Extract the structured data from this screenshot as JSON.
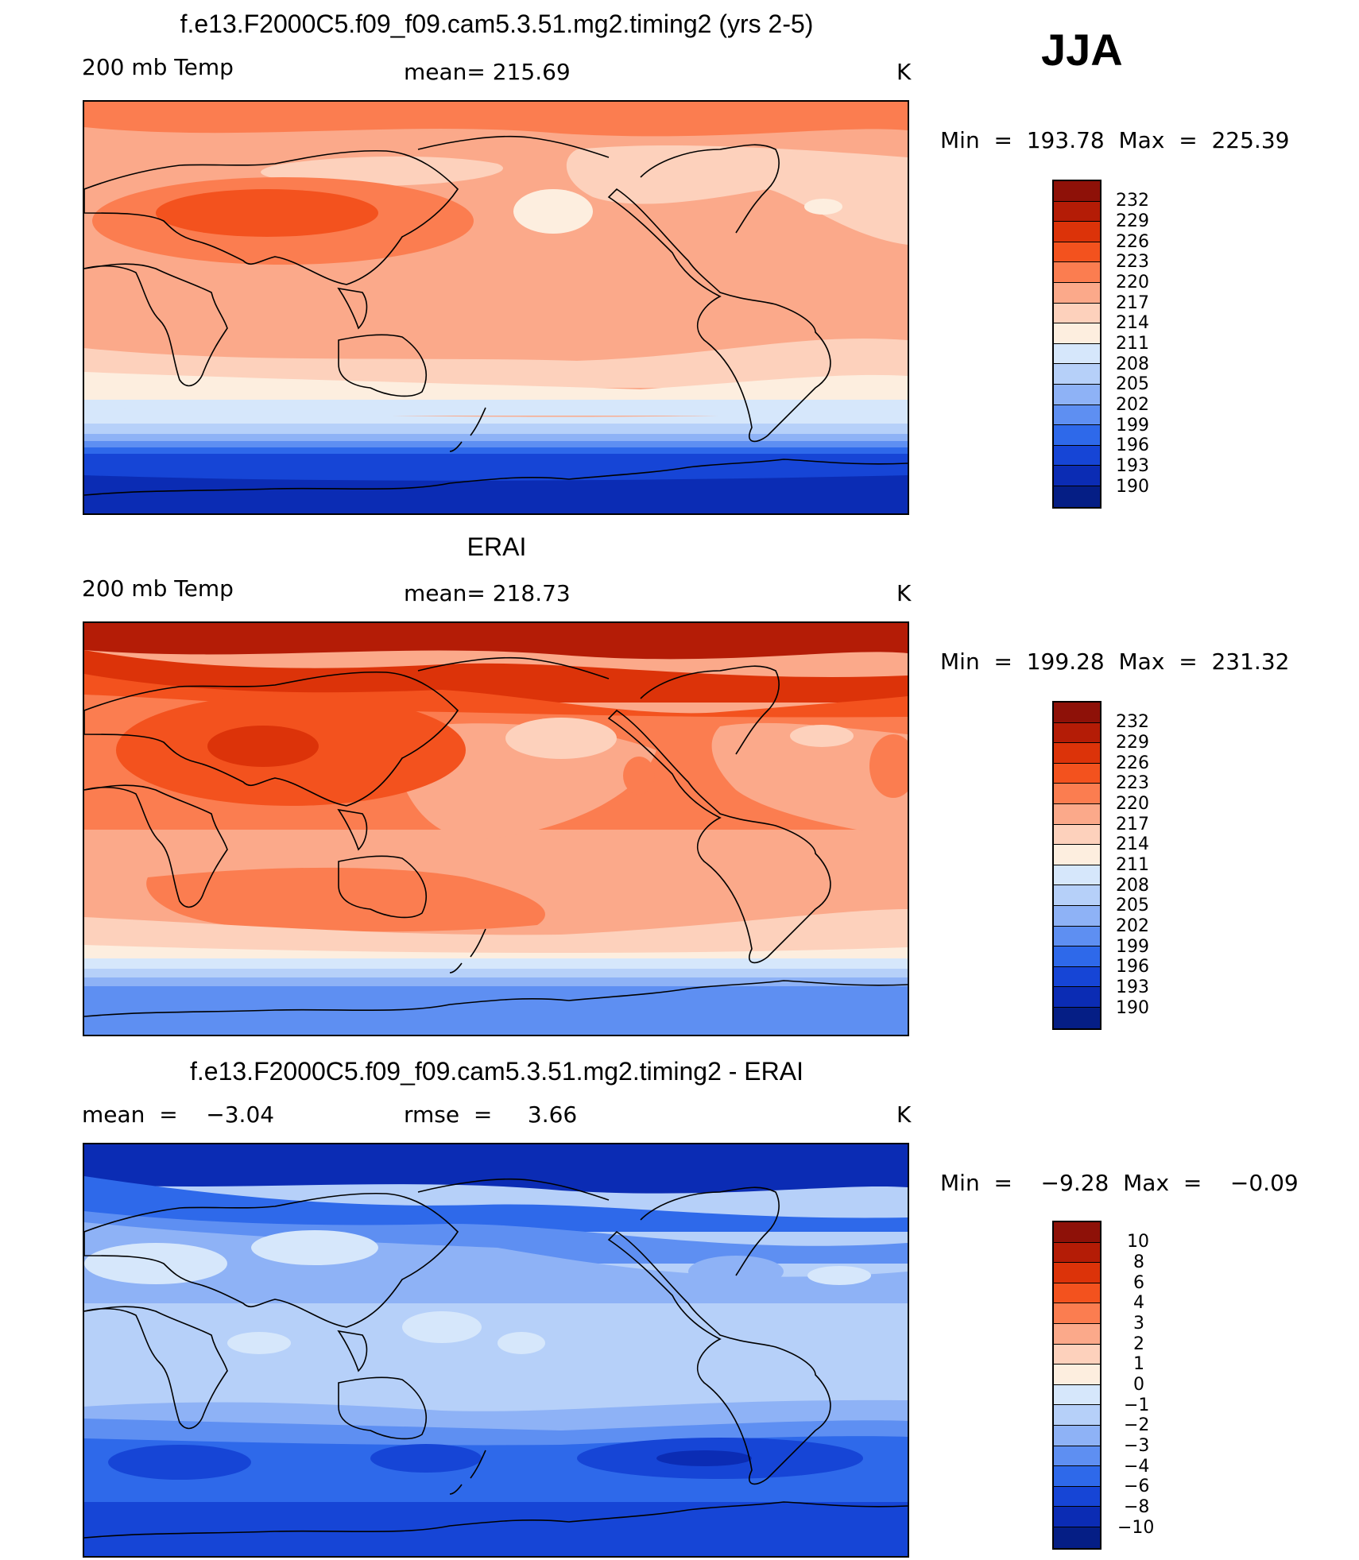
{
  "season": "JJA",
  "panels": [
    {
      "title": "f.e13.F2000C5.f09_f09.cam5.3.51.mg2.timing2 (yrs 2-5)",
      "left_label": "200 mb Temp",
      "center_label": "mean= 215.69",
      "units": "K",
      "minmax": "Min  =  193.78  Max  =  225.39",
      "colorbar": {
        "labels": [
          "232",
          "229",
          "226",
          "223",
          "220",
          "217",
          "214",
          "211",
          "208",
          "205",
          "202",
          "199",
          "196",
          "193",
          "190"
        ],
        "colors": [
          "#8e1108",
          "#b41c06",
          "#dc3309",
          "#f3521e",
          "#fb7d50",
          "#fba98a",
          "#fdd1bc",
          "#fdeedf",
          "#d6e7fb",
          "#b6d0f9",
          "#8eb2f6",
          "#5e8ff2",
          "#2e69ea",
          "#1645d6",
          "#0b2cb4",
          "#051e85"
        ]
      }
    },
    {
      "title": "ERAI",
      "left_label": "200 mb Temp",
      "center_label": "mean= 218.73",
      "units": "K",
      "minmax": "Min  =  199.28  Max  =  231.32",
      "colorbar": {
        "labels": [
          "232",
          "229",
          "226",
          "223",
          "220",
          "217",
          "214",
          "211",
          "208",
          "205",
          "202",
          "199",
          "196",
          "193",
          "190"
        ],
        "colors": [
          "#8e1108",
          "#b41c06",
          "#dc3309",
          "#f3521e",
          "#fb7d50",
          "#fba98a",
          "#fdd1bc",
          "#fdeedf",
          "#d6e7fb",
          "#b6d0f9",
          "#8eb2f6",
          "#5e8ff2",
          "#2e69ea",
          "#1645d6",
          "#0b2cb4",
          "#051e85"
        ]
      }
    },
    {
      "title": "f.e13.F2000C5.f09_f09.cam5.3.51.mg2.timing2 - ERAI",
      "left_label": "mean  =    −3.04",
      "center_label": "rmse  =     3.66",
      "units": "K",
      "minmax": "Min  =    −9.28  Max  =    −0.09",
      "colorbar": {
        "labels": [
          "10",
          "8",
          "6",
          "4",
          "3",
          "2",
          "1",
          "0",
          "−1",
          "−2",
          "−3",
          "−4",
          "−6",
          "−8",
          "−10"
        ],
        "colors": [
          "#8e1108",
          "#b41c06",
          "#dc3309",
          "#f3521e",
          "#fb7d50",
          "#fba98a",
          "#fdd1bc",
          "#fdeedf",
          "#d6e7fb",
          "#b6d0f9",
          "#8eb2f6",
          "#5e8ff2",
          "#2e69ea",
          "#1645d6",
          "#0b2cb4",
          "#051e85"
        ]
      }
    }
  ]
}
